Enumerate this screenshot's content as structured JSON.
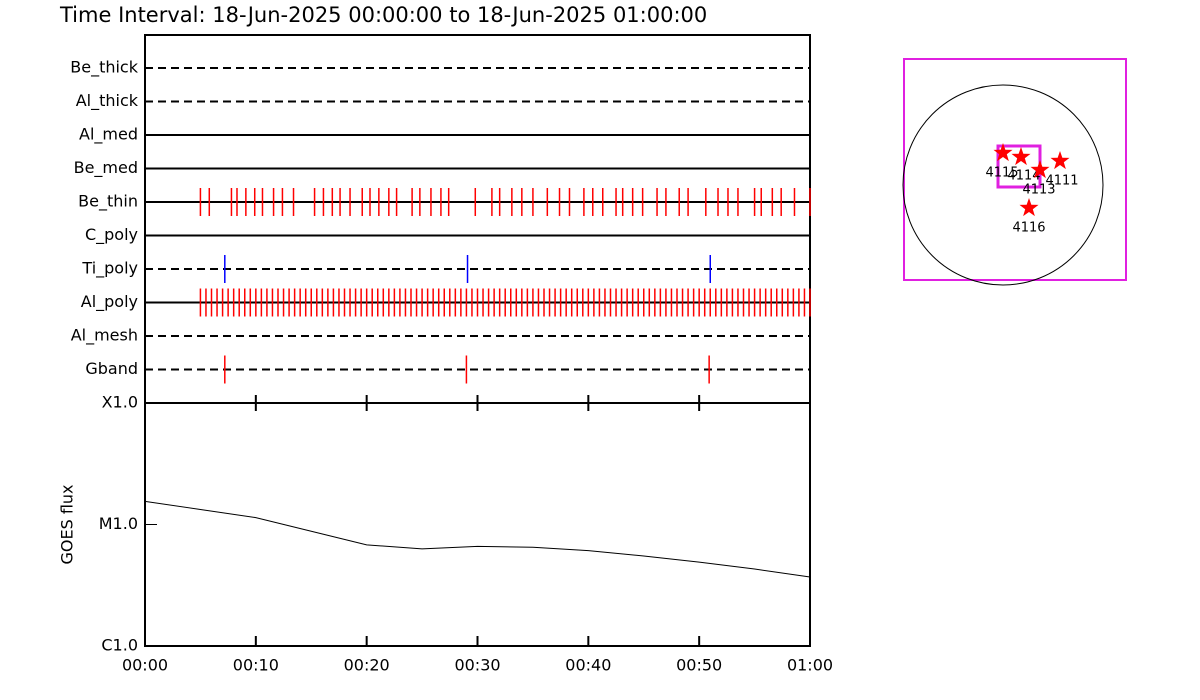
{
  "title": "Time Interval: 18-Jun-2025 00:00:00 to 18-Jun-2025 01:00:00",
  "chart_data": [
    {
      "type": "event-timeline",
      "xlim": [
        0,
        60
      ],
      "rows": [
        {
          "name": "Be_thick",
          "dashed": true,
          "color": "#ff0000",
          "times": []
        },
        {
          "name": "Al_thick",
          "dashed": true,
          "color": "#ff0000",
          "times": []
        },
        {
          "name": "Al_med",
          "dashed": false,
          "color": "#ff0000",
          "times": []
        },
        {
          "name": "Be_med",
          "dashed": false,
          "color": "#ff0000",
          "times": []
        },
        {
          "name": "Be_thin",
          "dashed": false,
          "color": "#ff0000",
          "times": [
            5,
            5.8,
            7.8,
            8.3,
            9.1,
            9.9,
            10.6,
            11.6,
            12.4,
            13.4,
            15.3,
            16.1,
            16.9,
            17.6,
            18.5,
            19.6,
            20.3,
            21.1,
            22,
            22.7,
            24.1,
            24.8,
            25.8,
            26.7,
            27.4,
            29.8,
            31.3,
            32,
            33.1,
            34,
            35,
            36.3,
            37.4,
            38.3,
            39.6,
            40.4,
            41.3,
            42.5,
            43.1,
            44,
            44.9,
            46.2,
            47,
            48.2,
            49,
            50.6,
            51.7,
            52.6,
            53.5,
            55,
            55.6,
            56.6,
            57.4,
            58.6,
            60
          ]
        },
        {
          "name": "C_poly",
          "dashed": false,
          "color": "#ff0000",
          "times": []
        },
        {
          "name": "Ti_poly",
          "dashed": true,
          "color": "#0000ff",
          "times": [
            7.2,
            29.1,
            51
          ]
        },
        {
          "name": "Al_poly",
          "dashed": false,
          "color": "#ff0000",
          "times": [
            5,
            5.5,
            6,
            6.5,
            7,
            7.5,
            8,
            8.5,
            9,
            9.5,
            10,
            10.5,
            11,
            11.5,
            12,
            12.5,
            13,
            13.5,
            14,
            14.5,
            15,
            15.5,
            16,
            16.5,
            17,
            17.5,
            18,
            18.5,
            19,
            19.5,
            20,
            20.5,
            21,
            21.5,
            22,
            22.5,
            23,
            23.5,
            24,
            24.5,
            25,
            25.5,
            26,
            26.5,
            27,
            27.5,
            28,
            28.5,
            29,
            29.5,
            30,
            30.5,
            31,
            31.5,
            32,
            32.5,
            33,
            33.5,
            34,
            34.5,
            35,
            35.5,
            36,
            36.5,
            37,
            37.5,
            38,
            38.5,
            39,
            39.5,
            40,
            40.5,
            41,
            41.5,
            42,
            42.5,
            43,
            43.5,
            44,
            44.5,
            45,
            45.5,
            46,
            46.5,
            47,
            47.5,
            48,
            48.5,
            49,
            49.5,
            50,
            50.5,
            51,
            51.5,
            52,
            52.5,
            53,
            53.5,
            54,
            54.5,
            55,
            55.5,
            56,
            56.5,
            57,
            57.5,
            58,
            58.5,
            59,
            59.5,
            60
          ]
        },
        {
          "name": "Al_mesh",
          "dashed": true,
          "color": "#ff0000",
          "times": []
        },
        {
          "name": "Gband",
          "dashed": true,
          "color": "#ff0000",
          "times": [
            7.2,
            29,
            50.9
          ]
        }
      ]
    },
    {
      "type": "line",
      "y_label": "GOES flux",
      "log_y": true,
      "x": [
        0,
        5,
        10,
        15,
        20,
        25,
        30,
        35,
        40,
        45,
        50,
        55,
        60
      ],
      "values": [
        1.55e-05,
        1.33e-05,
        1.14e-05,
        8.8e-06,
        6.8e-06,
        6.3e-06,
        6.6e-06,
        6.5e-06,
        6.1e-06,
        5.5e-06,
        4.9e-06,
        4.3e-06,
        3.7e-06
      ],
      "color": "#000000",
      "xlim": [
        0,
        60
      ],
      "xticks": [
        {
          "value": 0,
          "label": "00:00"
        },
        {
          "value": 10,
          "label": "00:10"
        },
        {
          "value": 20,
          "label": "00:20"
        },
        {
          "value": 30,
          "label": "00:30"
        },
        {
          "value": 40,
          "label": "00:40"
        },
        {
          "value": 50,
          "label": "00:50"
        },
        {
          "value": 60,
          "label": "01:00"
        }
      ],
      "ylim": [
        1e-06,
        0.0001
      ],
      "yticks": [
        {
          "value": 1e-06,
          "label": "C1.0"
        },
        {
          "value": 1e-05,
          "label": "M1.0"
        },
        {
          "value": 0.0001,
          "label": "X1.0"
        }
      ]
    }
  ],
  "map": {
    "regions": [
      "4115",
      "4114",
      "4113",
      "4111",
      "4116"
    ]
  }
}
